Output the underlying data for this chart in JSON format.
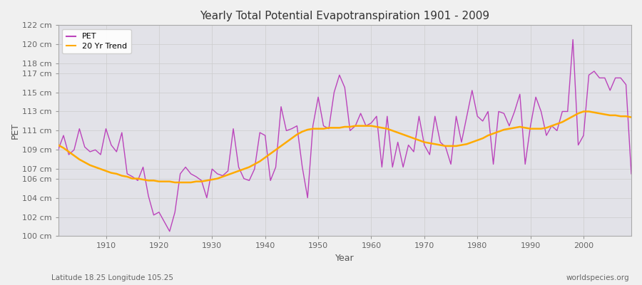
{
  "title": "Yearly Total Potential Evapotranspiration 1901 - 2009",
  "xlabel": "Year",
  "ylabel": "PET",
  "subtitle_left": "Latitude 18.25 Longitude 105.25",
  "subtitle_right": "worldspecies.org",
  "pet_line_color": "#bb44bb",
  "trend_line_color": "#ffaa00",
  "fig_bg_color": "#f0f0f0",
  "plot_bg_color": "#e2e2e8",
  "grid_color": "#cccccc",
  "ylim": [
    100,
    122
  ],
  "yticks": [
    100,
    102,
    104,
    106,
    107,
    109,
    111,
    113,
    115,
    117,
    118,
    120,
    122
  ],
  "xlim": [
    1901,
    2009
  ],
  "xticks": [
    1910,
    1920,
    1930,
    1940,
    1950,
    1960,
    1970,
    1980,
    1990,
    2000
  ],
  "years": [
    1901,
    1902,
    1903,
    1904,
    1905,
    1906,
    1907,
    1908,
    1909,
    1910,
    1911,
    1912,
    1913,
    1914,
    1915,
    1916,
    1917,
    1918,
    1919,
    1920,
    1921,
    1922,
    1923,
    1924,
    1925,
    1926,
    1927,
    1928,
    1929,
    1930,
    1931,
    1932,
    1933,
    1934,
    1935,
    1936,
    1937,
    1938,
    1939,
    1940,
    1941,
    1942,
    1943,
    1944,
    1945,
    1946,
    1947,
    1948,
    1949,
    1950,
    1951,
    1952,
    1953,
    1954,
    1955,
    1956,
    1957,
    1958,
    1959,
    1960,
    1961,
    1962,
    1963,
    1964,
    1965,
    1966,
    1967,
    1968,
    1969,
    1970,
    1971,
    1972,
    1973,
    1974,
    1975,
    1976,
    1977,
    1978,
    1979,
    1980,
    1981,
    1982,
    1983,
    1984,
    1985,
    1986,
    1987,
    1988,
    1989,
    1990,
    1991,
    1992,
    1993,
    1994,
    1995,
    1996,
    1997,
    1998,
    1999,
    2000,
    2001,
    2002,
    2003,
    2004,
    2005,
    2006,
    2007,
    2008,
    2009
  ],
  "pet_values": [
    109.0,
    110.5,
    108.5,
    109.0,
    111.2,
    109.3,
    108.8,
    109.0,
    108.5,
    111.2,
    109.5,
    108.8,
    110.8,
    106.5,
    106.2,
    105.8,
    107.2,
    104.2,
    102.2,
    102.5,
    101.5,
    100.5,
    102.5,
    106.5,
    107.2,
    106.5,
    106.2,
    105.8,
    104.0,
    107.0,
    106.5,
    106.3,
    106.8,
    111.2,
    107.2,
    106.0,
    105.8,
    107.0,
    110.8,
    110.5,
    105.8,
    107.2,
    113.5,
    111.0,
    111.2,
    111.5,
    107.2,
    104.0,
    111.5,
    114.5,
    111.5,
    111.2,
    115.0,
    116.8,
    115.5,
    111.0,
    111.5,
    112.8,
    111.5,
    111.8,
    112.5,
    107.2,
    112.5,
    107.2,
    109.8,
    107.2,
    109.5,
    108.8,
    112.5,
    109.5,
    108.5,
    112.5,
    109.8,
    109.3,
    107.5,
    112.5,
    109.8,
    112.5,
    115.2,
    112.5,
    112.0,
    113.0,
    107.5,
    113.0,
    112.8,
    111.5,
    113.0,
    114.8,
    107.5,
    111.5,
    114.5,
    113.0,
    110.5,
    111.5,
    111.0,
    113.0,
    113.0,
    120.5,
    109.5,
    110.5,
    116.8,
    117.2,
    116.5,
    116.5,
    115.2,
    116.5,
    116.5,
    115.8,
    106.5
  ],
  "trend_values": [
    109.5,
    109.2,
    108.8,
    108.4,
    108.0,
    107.7,
    107.4,
    107.2,
    107.0,
    106.8,
    106.6,
    106.5,
    106.3,
    106.2,
    106.0,
    106.0,
    105.9,
    105.8,
    105.8,
    105.7,
    105.7,
    105.7,
    105.6,
    105.6,
    105.6,
    105.6,
    105.7,
    105.7,
    105.8,
    105.9,
    106.0,
    106.2,
    106.4,
    106.6,
    106.8,
    107.0,
    107.2,
    107.5,
    107.8,
    108.2,
    108.6,
    109.0,
    109.4,
    109.8,
    110.2,
    110.6,
    110.9,
    111.1,
    111.2,
    111.2,
    111.2,
    111.3,
    111.3,
    111.3,
    111.4,
    111.4,
    111.5,
    111.5,
    111.5,
    111.5,
    111.4,
    111.3,
    111.2,
    111.0,
    110.8,
    110.6,
    110.4,
    110.2,
    110.0,
    109.8,
    109.7,
    109.6,
    109.5,
    109.4,
    109.4,
    109.4,
    109.5,
    109.6,
    109.8,
    110.0,
    110.2,
    110.5,
    110.7,
    110.9,
    111.1,
    111.2,
    111.3,
    111.4,
    111.3,
    111.2,
    111.2,
    111.2,
    111.3,
    111.5,
    111.7,
    111.9,
    112.2,
    112.5,
    112.8,
    113.0,
    113.0,
    112.9,
    112.8,
    112.7,
    112.6,
    112.6,
    112.5,
    112.5,
    112.4
  ]
}
